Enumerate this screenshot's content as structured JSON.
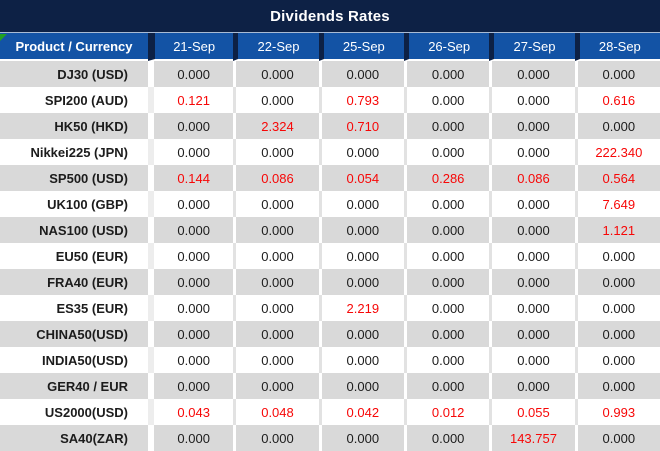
{
  "title_bar": {
    "title": "Dividends Rates"
  },
  "colors": {
    "title_bg": "#0D2145",
    "header_bg": "#1353A5",
    "header_text": "#FFFFFF",
    "row_alt_bg": "#D9D9D9",
    "row_bg": "#FFFFFF",
    "value_text": "#1C1C1C",
    "value_highlight": "#F70707",
    "corner_green": "#21A121"
  },
  "icons": {
    "corner_marker": "green-corner-triangle"
  },
  "chart_data": {
    "type": "table",
    "title": "Dividends Rates",
    "columns": [
      "Product / Currency",
      "21-Sep",
      "22-Sep",
      "25-Sep",
      "26-Sep",
      "27-Sep",
      "28-Sep"
    ],
    "rows": [
      {
        "product": "DJ30 (USD)",
        "values": [
          "0.000",
          "0.000",
          "0.000",
          "0.000",
          "0.000",
          "0.000"
        ],
        "highlight": [
          0,
          0,
          0,
          0,
          0,
          0
        ]
      },
      {
        "product": "SPI200 (AUD)",
        "values": [
          "0.121",
          "0.000",
          "0.793",
          "0.000",
          "0.000",
          "0.616"
        ],
        "highlight": [
          1,
          0,
          1,
          0,
          0,
          1
        ]
      },
      {
        "product": "HK50 (HKD)",
        "values": [
          "0.000",
          "2.324",
          "0.710",
          "0.000",
          "0.000",
          "0.000"
        ],
        "highlight": [
          0,
          1,
          1,
          0,
          0,
          0
        ]
      },
      {
        "product": "Nikkei225 (JPN)",
        "values": [
          "0.000",
          "0.000",
          "0.000",
          "0.000",
          "0.000",
          "222.340"
        ],
        "highlight": [
          0,
          0,
          0,
          0,
          0,
          1
        ]
      },
      {
        "product": "SP500 (USD)",
        "values": [
          "0.144",
          "0.086",
          "0.054",
          "0.286",
          "0.086",
          "0.564"
        ],
        "highlight": [
          1,
          1,
          1,
          1,
          1,
          1
        ]
      },
      {
        "product": "UK100 (GBP)",
        "values": [
          "0.000",
          "0.000",
          "0.000",
          "0.000",
          "0.000",
          "7.649"
        ],
        "highlight": [
          0,
          0,
          0,
          0,
          0,
          1
        ]
      },
      {
        "product": "NAS100 (USD)",
        "values": [
          "0.000",
          "0.000",
          "0.000",
          "0.000",
          "0.000",
          "1.121"
        ],
        "highlight": [
          0,
          0,
          0,
          0,
          0,
          1
        ]
      },
      {
        "product": "EU50 (EUR)",
        "values": [
          "0.000",
          "0.000",
          "0.000",
          "0.000",
          "0.000",
          "0.000"
        ],
        "highlight": [
          0,
          0,
          0,
          0,
          0,
          0
        ]
      },
      {
        "product": "FRA40 (EUR)",
        "values": [
          "0.000",
          "0.000",
          "0.000",
          "0.000",
          "0.000",
          "0.000"
        ],
        "highlight": [
          0,
          0,
          0,
          0,
          0,
          0
        ]
      },
      {
        "product": "ES35 (EUR)",
        "values": [
          "0.000",
          "0.000",
          "2.219",
          "0.000",
          "0.000",
          "0.000"
        ],
        "highlight": [
          0,
          0,
          1,
          0,
          0,
          0
        ]
      },
      {
        "product": "CHINA50(USD)",
        "values": [
          "0.000",
          "0.000",
          "0.000",
          "0.000",
          "0.000",
          "0.000"
        ],
        "highlight": [
          0,
          0,
          0,
          0,
          0,
          0
        ]
      },
      {
        "product": "INDIA50(USD)",
        "values": [
          "0.000",
          "0.000",
          "0.000",
          "0.000",
          "0.000",
          "0.000"
        ],
        "highlight": [
          0,
          0,
          0,
          0,
          0,
          0
        ]
      },
      {
        "product": "GER40 / EUR",
        "values": [
          "0.000",
          "0.000",
          "0.000",
          "0.000",
          "0.000",
          "0.000"
        ],
        "highlight": [
          0,
          0,
          0,
          0,
          0,
          0
        ]
      },
      {
        "product": "US2000(USD)",
        "values": [
          "0.043",
          "0.048",
          "0.042",
          "0.012",
          "0.055",
          "0.993"
        ],
        "highlight": [
          1,
          1,
          1,
          1,
          1,
          1
        ]
      },
      {
        "product": "SA40(ZAR)",
        "values": [
          "0.000",
          "0.000",
          "0.000",
          "0.000",
          "143.757",
          "0.000"
        ],
        "highlight": [
          0,
          0,
          0,
          0,
          1,
          0
        ]
      }
    ]
  }
}
